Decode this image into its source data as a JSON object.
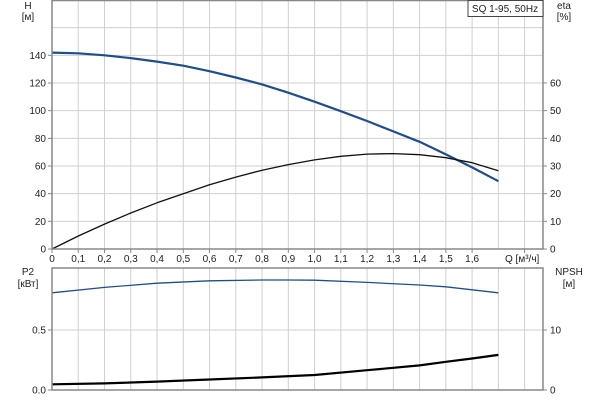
{
  "chart_data": [
    {
      "type": "line",
      "legend_box": "SQ 1-95, 50Hz",
      "xlabel": "Q [м³/ч]",
      "x_ticks": [
        "0",
        "0,1",
        "0,2",
        "0,3",
        "0,4",
        "0,5",
        "0,6",
        "0,7",
        "0,8",
        "0,9",
        "1,0",
        "1,1",
        "1,2",
        "1,3",
        "1,4",
        "1,5",
        "1,6"
      ],
      "xlim": [
        0,
        1.87
      ],
      "grid": true,
      "left_axis": {
        "label": "H",
        "unit": "[м]",
        "ticks": [
          "0",
          "20",
          "40",
          "60",
          "80",
          "100",
          "120",
          "140"
        ],
        "ylim": [
          0,
          180
        ]
      },
      "right_axis": {
        "label": "eta",
        "unit": "[%]",
        "ticks": [
          "0",
          "10",
          "20",
          "30",
          "40",
          "50",
          "60"
        ],
        "ylim": [
          0,
          90
        ]
      },
      "series": [
        {
          "axis": "left",
          "color": "#1f4e89",
          "x": [
            0,
            0.1,
            0.2,
            0.3,
            0.4,
            0.5,
            0.6,
            0.7,
            0.8,
            0.9,
            1.0,
            1.1,
            1.2,
            1.3,
            1.4,
            1.5,
            1.6,
            1.7
          ],
          "y": [
            142,
            141.5,
            140,
            138,
            135.5,
            132.5,
            128.5,
            124,
            119,
            113,
            106.5,
            99.6,
            92.5,
            85,
            77.5,
            68.4,
            59,
            49
          ]
        },
        {
          "axis": "right",
          "color": "#111111",
          "x": [
            0,
            0.1,
            0.2,
            0.3,
            0.4,
            0.5,
            0.6,
            0.7,
            0.8,
            0.9,
            1.0,
            1.1,
            1.2,
            1.3,
            1.4,
            1.5,
            1.6,
            1.7
          ],
          "y": [
            0,
            4.7,
            9,
            13,
            16.7,
            20,
            23.2,
            26,
            28.5,
            30.5,
            32.2,
            33.5,
            34.3,
            34.5,
            34.1,
            33,
            31.2,
            28.3
          ]
        }
      ]
    },
    {
      "type": "line",
      "xlim": [
        0,
        1.87
      ],
      "grid": true,
      "left_axis": {
        "label": "P2",
        "unit": "[кВт]",
        "ticks": [
          "0.0",
          "0.5"
        ],
        "ylim": [
          0,
          1.017
        ]
      },
      "right_axis": {
        "label": "NPSH",
        "unit": "[м]",
        "ticks": [
          "0",
          "10"
        ],
        "ylim": [
          0,
          20.33
        ]
      },
      "series": [
        {
          "axis": "left",
          "color": "#1f4e89",
          "x": [
            0,
            0.2,
            0.4,
            0.6,
            0.8,
            0.9,
            1.0,
            1.2,
            1.4,
            1.5,
            1.6,
            1.7
          ],
          "y": [
            0.81,
            0.855,
            0.89,
            0.91,
            0.917,
            0.917,
            0.915,
            0.897,
            0.875,
            0.86,
            0.835,
            0.81
          ]
        },
        {
          "axis": "right",
          "color": "#000000",
          "x": [
            0,
            0.2,
            0.4,
            0.6,
            0.8,
            1.0,
            1.2,
            1.4,
            1.5,
            1.6,
            1.7
          ],
          "y": [
            0.95,
            1.1,
            1.4,
            1.75,
            2.1,
            2.5,
            3.3,
            4.1,
            4.7,
            5.25,
            5.85
          ]
        }
      ]
    }
  ]
}
